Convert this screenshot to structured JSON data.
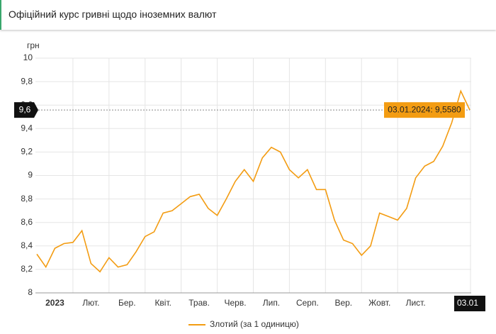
{
  "title": "Офіційний курс гривні щодо іноземних валют",
  "chart_data": {
    "type": "line",
    "y_label": "грн",
    "categories": [
      null,
      null,
      "2023",
      null,
      null,
      null,
      "Лют.",
      null,
      null,
      null,
      "Бер.",
      null,
      null,
      null,
      "Квіт.",
      null,
      null,
      null,
      "Трав.",
      null,
      null,
      null,
      "Черв.",
      null,
      null,
      null,
      "Лип.",
      null,
      null,
      null,
      "Серп.",
      null,
      null,
      null,
      "Вер.",
      null,
      null,
      null,
      "Жовт.",
      null,
      null,
      null,
      "Лист.",
      null,
      null,
      null,
      null,
      null,
      "03.01"
    ],
    "series": [
      {
        "name": "Злотий (за 1 одиницю)",
        "color": "#f39c12",
        "values": [
          8.33,
          8.22,
          8.38,
          8.42,
          8.43,
          8.53,
          8.25,
          8.18,
          8.3,
          8.22,
          8.24,
          8.35,
          8.48,
          8.52,
          8.68,
          8.7,
          8.76,
          8.82,
          8.84,
          8.72,
          8.66,
          8.8,
          8.95,
          9.05,
          8.95,
          9.15,
          9.24,
          9.2,
          9.05,
          8.98,
          9.05,
          8.88,
          8.88,
          8.62,
          8.45,
          8.42,
          8.32,
          8.4,
          8.68,
          8.65,
          8.62,
          8.72,
          8.98,
          9.08,
          9.12,
          9.25,
          9.45,
          9.72,
          9.558
        ]
      }
    ],
    "ylim": [
      8,
      10
    ],
    "yticks": [
      8,
      {
        "value": 8.2,
        "label": "8,2"
      },
      {
        "value": 8.4,
        "label": "8,4"
      },
      {
        "value": 8.6,
        "label": "8,6"
      },
      {
        "value": 8.8,
        "label": "8,8"
      },
      9,
      {
        "value": 9.2,
        "label": "9,2"
      },
      {
        "value": 9.4,
        "label": "9,4"
      },
      {
        "value": 9.6,
        "label": "9,6"
      },
      {
        "value": 9.8,
        "label": "9,8"
      },
      10
    ],
    "grid": true,
    "crosshair": {
      "label": "9,6",
      "tooltip": "03.01.2024: 9,5580"
    }
  }
}
